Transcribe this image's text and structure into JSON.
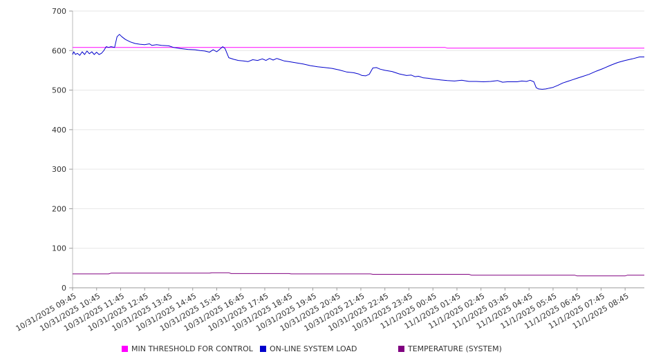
{
  "chart_data": {
    "type": "line",
    "title": "",
    "xlabel": "",
    "ylabel": "",
    "ylim": [
      0,
      700
    ],
    "y_ticks": [
      0,
      100,
      200,
      300,
      400,
      500,
      600,
      700
    ],
    "grid": "horizontal",
    "legend_position": "bottom",
    "categories": [
      "10/31/2025 09:45",
      "10/31/2025 10:45",
      "10/31/2025 11:45",
      "10/31/2025 12:45",
      "10/31/2025 13:45",
      "10/31/2025 14:45",
      "10/31/2025 15:45",
      "10/31/2025 16:45",
      "10/31/2025 17:45",
      "10/31/2025 18:45",
      "10/31/2025 19:45",
      "10/31/2025 20:45",
      "10/31/2025 21:45",
      "10/31/2025 22:45",
      "10/31/2025 23:45",
      "11/1/2025 00:45",
      "11/1/2025 01:45",
      "11/1/2025 02:45",
      "11/1/2025 03:45",
      "11/1/2025 04:45",
      "11/1/2025 05:45",
      "11/1/2025 06:45",
      "11/1/2025 07:45",
      "11/1/2025 08:45"
    ],
    "series": [
      {
        "name": "MIN THRESHOLD FOR CONTROL",
        "color": "#ff00ff",
        "values": [
          [
            0,
            608
          ],
          [
            15.5,
            608
          ],
          [
            15.6,
            606
          ],
          [
            23.8,
            606
          ]
        ]
      },
      {
        "name": "ON-LINE SYSTEM LOAD",
        "color": "#0000cc",
        "values": [
          [
            0,
            590
          ],
          [
            0.05,
            597
          ],
          [
            0.12,
            590
          ],
          [
            0.2,
            593
          ],
          [
            0.3,
            588
          ],
          [
            0.4,
            597
          ],
          [
            0.5,
            590
          ],
          [
            0.6,
            599
          ],
          [
            0.7,
            592
          ],
          [
            0.8,
            597
          ],
          [
            0.9,
            590
          ],
          [
            1.0,
            596
          ],
          [
            1.1,
            590
          ],
          [
            1.2,
            593
          ],
          [
            1.3,
            600
          ],
          [
            1.4,
            610
          ],
          [
            1.5,
            608
          ],
          [
            1.6,
            610
          ],
          [
            1.75,
            608
          ],
          [
            1.85,
            635
          ],
          [
            1.95,
            641
          ],
          [
            2.05,
            635
          ],
          [
            2.2,
            628
          ],
          [
            2.4,
            622
          ],
          [
            2.6,
            618
          ],
          [
            2.8,
            616
          ],
          [
            3.0,
            615
          ],
          [
            3.2,
            617
          ],
          [
            3.3,
            613
          ],
          [
            3.5,
            615
          ],
          [
            3.7,
            613
          ],
          [
            4.0,
            612
          ],
          [
            4.2,
            608
          ],
          [
            4.5,
            605
          ],
          [
            4.8,
            603
          ],
          [
            5.1,
            602
          ],
          [
            5.3,
            600
          ],
          [
            5.5,
            599
          ],
          [
            5.7,
            596
          ],
          [
            5.85,
            602
          ],
          [
            6.0,
            597
          ],
          [
            6.1,
            602
          ],
          [
            6.25,
            610
          ],
          [
            6.35,
            605
          ],
          [
            6.5,
            582
          ],
          [
            6.7,
            578
          ],
          [
            6.9,
            575
          ],
          [
            7.1,
            574
          ],
          [
            7.3,
            572
          ],
          [
            7.5,
            577
          ],
          [
            7.7,
            575
          ],
          [
            7.9,
            579
          ],
          [
            8.05,
            575
          ],
          [
            8.2,
            580
          ],
          [
            8.35,
            576
          ],
          [
            8.5,
            580
          ],
          [
            8.6,
            578
          ],
          [
            8.8,
            574
          ],
          [
            9.0,
            572
          ],
          [
            9.3,
            569
          ],
          [
            9.6,
            566
          ],
          [
            9.9,
            562
          ],
          [
            10.2,
            559
          ],
          [
            10.5,
            557
          ],
          [
            10.8,
            555
          ],
          [
            11.1,
            551
          ],
          [
            11.4,
            546
          ],
          [
            11.7,
            544
          ],
          [
            11.9,
            541
          ],
          [
            12.05,
            537
          ],
          [
            12.2,
            536
          ],
          [
            12.35,
            540
          ],
          [
            12.5,
            556
          ],
          [
            12.65,
            557
          ],
          [
            12.8,
            553
          ],
          [
            13.0,
            550
          ],
          [
            13.3,
            547
          ],
          [
            13.6,
            541
          ],
          [
            13.9,
            537
          ],
          [
            14.1,
            538
          ],
          [
            14.25,
            534
          ],
          [
            14.4,
            535
          ],
          [
            14.6,
            531
          ],
          [
            14.8,
            530
          ],
          [
            15.0,
            528
          ],
          [
            15.3,
            526
          ],
          [
            15.6,
            524
          ],
          [
            15.9,
            523
          ],
          [
            16.2,
            525
          ],
          [
            16.5,
            522
          ],
          [
            16.8,
            522
          ],
          [
            17.1,
            521
          ],
          [
            17.4,
            522
          ],
          [
            17.7,
            524
          ],
          [
            17.9,
            520
          ],
          [
            18.1,
            521
          ],
          [
            18.3,
            521
          ],
          [
            18.5,
            521
          ],
          [
            18.7,
            523
          ],
          [
            18.9,
            522
          ],
          [
            19.05,
            525
          ],
          [
            19.2,
            521
          ],
          [
            19.3,
            506
          ],
          [
            19.4,
            503
          ],
          [
            19.55,
            502
          ],
          [
            19.7,
            503
          ],
          [
            19.85,
            505
          ],
          [
            20.0,
            507
          ],
          [
            20.2,
            512
          ],
          [
            20.4,
            518
          ],
          [
            20.6,
            522
          ],
          [
            20.8,
            526
          ],
          [
            21.0,
            530
          ],
          [
            21.2,
            534
          ],
          [
            21.5,
            540
          ],
          [
            21.8,
            548
          ],
          [
            22.1,
            555
          ],
          [
            22.4,
            563
          ],
          [
            22.7,
            570
          ],
          [
            23.0,
            575
          ],
          [
            23.3,
            579
          ],
          [
            23.6,
            584
          ],
          [
            23.8,
            584
          ]
        ]
      },
      {
        "name": "TEMPERATURE (SYSTEM)",
        "color": "#800080",
        "values": [
          [
            0,
            35
          ],
          [
            1.5,
            35
          ],
          [
            1.6,
            37
          ],
          [
            5.7,
            37
          ],
          [
            5.8,
            38
          ],
          [
            6.5,
            38
          ],
          [
            6.6,
            36
          ],
          [
            9.0,
            36
          ],
          [
            9.1,
            35
          ],
          [
            12.4,
            35
          ],
          [
            12.5,
            34
          ],
          [
            16.5,
            34
          ],
          [
            16.6,
            32
          ],
          [
            20.9,
            32
          ],
          [
            21.0,
            30
          ],
          [
            23.0,
            30
          ],
          [
            23.1,
            32
          ],
          [
            23.8,
            32
          ]
        ]
      }
    ]
  }
}
